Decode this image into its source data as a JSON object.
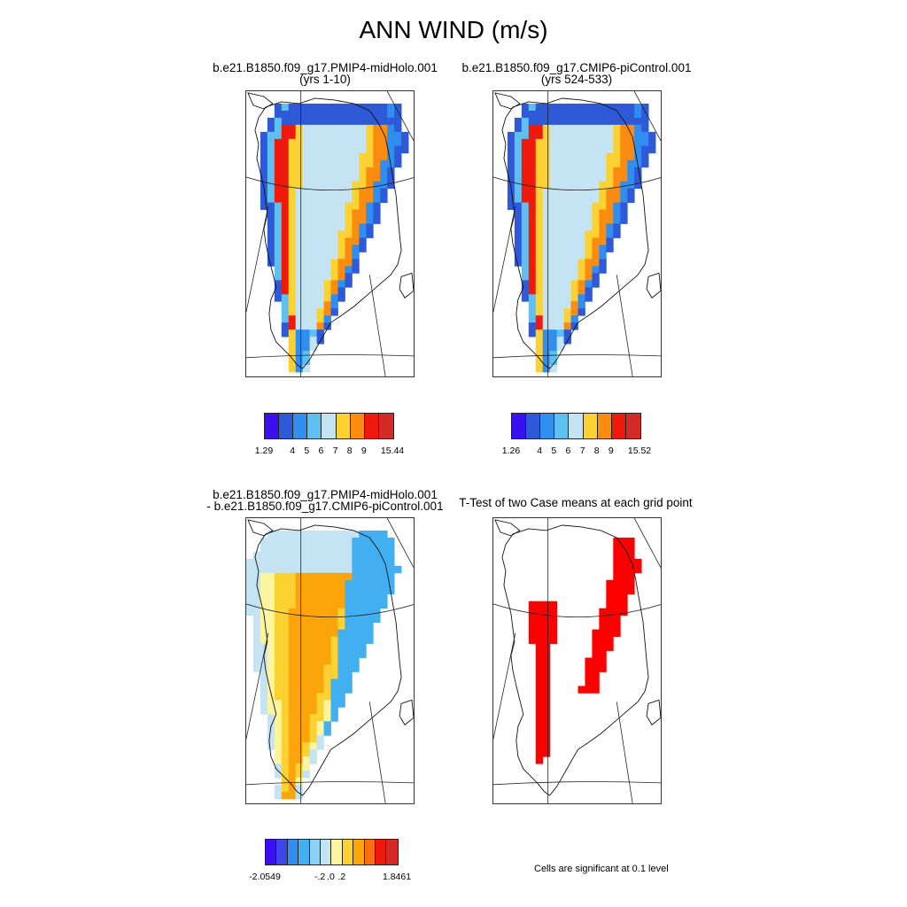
{
  "figure": {
    "title": "ANN WIND (m/s)"
  },
  "panels": [
    {
      "key": "p1",
      "title_line1": "b.e21.B1850.f09_g17.PMIP4-midHolo.001",
      "title_line2": "(yrs 1-10)",
      "field": "wind"
    },
    {
      "key": "p2",
      "title_line1": "b.e21.B1850.f09_g17.CMIP6-piControl.001",
      "title_line2": "(yrs 524-533)",
      "field": "wind"
    },
    {
      "key": "p3",
      "title_line1": "b.e21.B1850.f09_g17.PMIP4-midHolo.001",
      "title_line2": "- b.e21.B1850.f09_g17.CMIP6-piControl.001",
      "field": "diff"
    },
    {
      "key": "p4",
      "title_line1": "T-Test of two Case means at each grid point",
      "title_line2": "",
      "field": "sig"
    }
  ],
  "colorbars": {
    "wind1": {
      "labels": [
        "1.29",
        "4",
        "5",
        "6",
        "7",
        "8",
        "9",
        "15.44"
      ]
    },
    "wind2": {
      "labels": [
        "1.26",
        "4",
        "5",
        "6",
        "7",
        "8",
        "9",
        "15.52"
      ]
    },
    "diff": {
      "labels": [
        "-2.0549",
        "-.2",
        ".0",
        ".2",
        "1.8461"
      ]
    }
  },
  "palettes": {
    "wind": [
      "#3a10f0",
      "#2e5ad8",
      "#2f8ef0",
      "#5ec0f0",
      "#c4e4f4",
      "#fcd232",
      "#fa8c10",
      "#f01a0c",
      "#d42a28"
    ],
    "diff": [
      "#3a10f0",
      "#3c46e8",
      "#2f8ef0",
      "#42b0f0",
      "#8cd2f4",
      "#c4e4f4",
      "#fcf5a0",
      "#fcd232",
      "#fca50a",
      "#fa7010",
      "#f01a0c",
      "#d42a28"
    ],
    "significant": "#ff0000"
  },
  "significance_note": "Cells are significant at 0.1 level"
}
